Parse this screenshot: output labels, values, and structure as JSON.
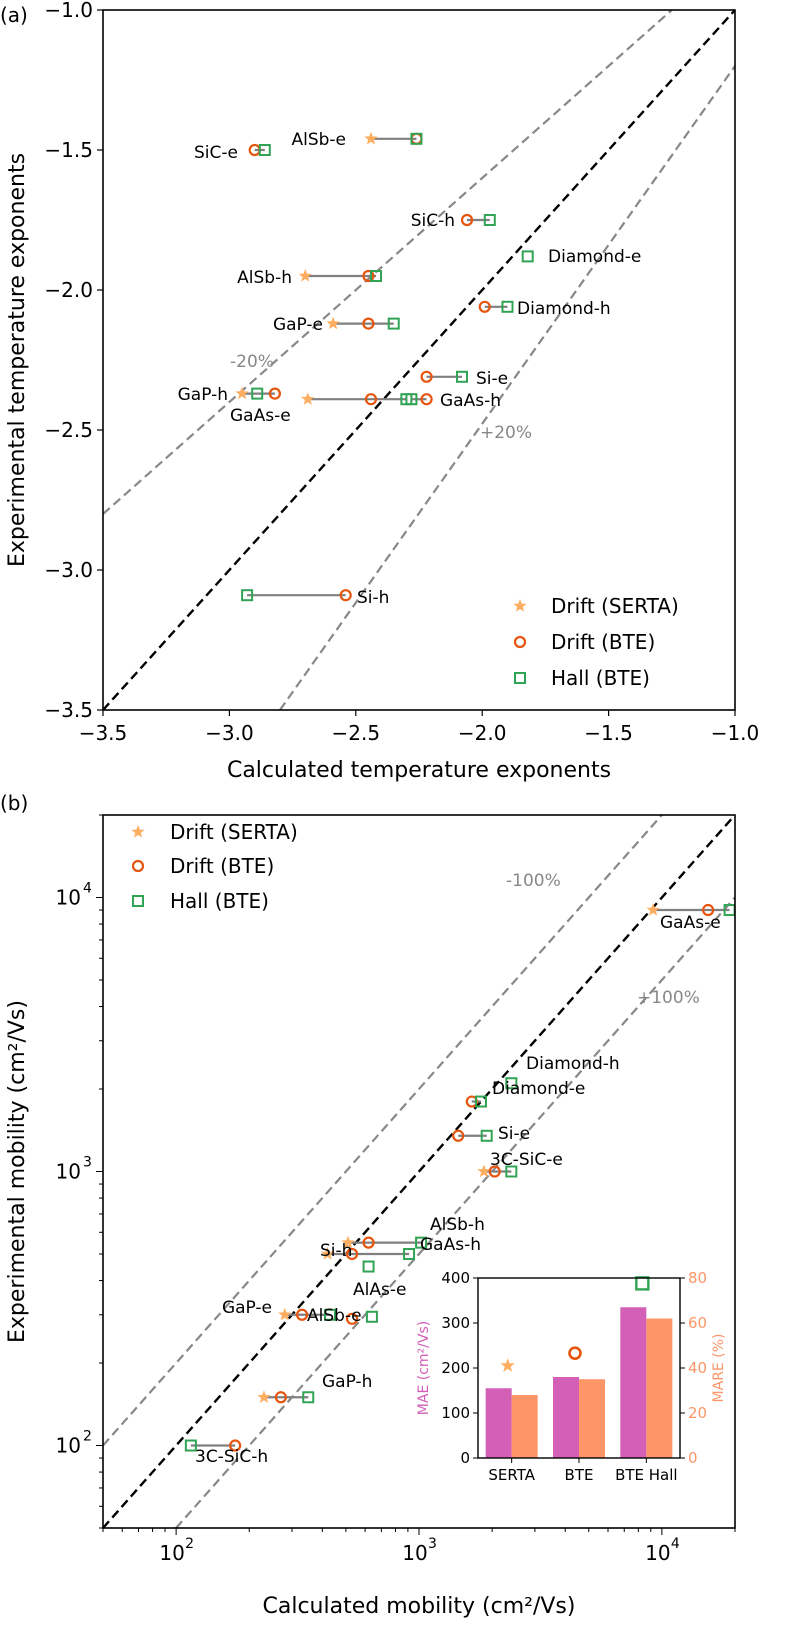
{
  "chart_data": [
    {
      "panel_label": "(a)",
      "type": "scatter",
      "xlabel": "Calculated temperature exponents",
      "ylabel": "Experimental  temperature exponents",
      "xlim": [
        -3.5,
        -1.0
      ],
      "ylim": [
        -3.5,
        -1.0
      ],
      "xticks": [
        "−3.5",
        "−3.0",
        "−2.5",
        "−2.0",
        "−1.5",
        "−1.0"
      ],
      "yticks": [
        "−3.5",
        "−3.0",
        "−2.5",
        "−2.0",
        "−1.5",
        "−1.0"
      ],
      "reference_lines": [
        "-20%",
        "+20%"
      ],
      "legend": {
        "position": "lower right",
        "entries": [
          "Drift (SERTA)",
          "Drift (BTE)",
          "Hall (BTE)"
        ]
      },
      "series_colors": {
        "drift_serta": "#fdae61",
        "drift_bte": "#e6550d",
        "hall_bte": "#31a354"
      },
      "points": [
        {
          "label": "SiC-e",
          "y": -1.5,
          "drift_bte": -2.9,
          "hall_bte": -2.86
        },
        {
          "label": "AlSb-e",
          "y": -1.46,
          "drift_serta": -2.44,
          "drift_bte": -2.26,
          "hall_bte": -2.26
        },
        {
          "label": "SiC-h",
          "y": -1.75,
          "drift_bte": -2.06,
          "hall_bte": -1.97
        },
        {
          "label": "Diamond-e",
          "y": -1.88,
          "hall_bte": -1.82
        },
        {
          "label": "AlSb-h",
          "y": -1.95,
          "drift_serta": -2.7,
          "drift_bte": -2.45,
          "hall_bte": -2.42
        },
        {
          "label": "Diamond-h",
          "y": -2.06,
          "drift_bte": -1.99,
          "hall_bte": -1.9
        },
        {
          "label": "GaP-e",
          "y": -2.12,
          "drift_serta": -2.59,
          "drift_bte": -2.45,
          "hall_bte": -2.35
        },
        {
          "label": "Si-e",
          "y": -2.31,
          "drift_bte": -2.22,
          "hall_bte": -2.08
        },
        {
          "label": "GaP-h",
          "y": -2.37,
          "drift_serta": -2.95,
          "drift_bte": -2.82,
          "hall_bte": -2.89
        },
        {
          "label": "GaAs-e",
          "y": -2.39,
          "drift_serta": -2.69,
          "drift_bte": -2.44,
          "hall_bte": -2.3
        },
        {
          "label": "GaAs-h",
          "y": -2.39,
          "drift_bte": -2.22,
          "hall_bte": -2.28
        },
        {
          "label": "Si-h",
          "y": -3.09,
          "drift_bte": -2.54,
          "hall_bte": -2.93
        }
      ]
    },
    {
      "panel_label": "(b)",
      "type": "scatter",
      "xlabel": "Calculated mobility (cm²/Vs)",
      "ylabel": "Experimental mobility (cm²/Vs)",
      "xscale": "log",
      "yscale": "log",
      "xlim": [
        50,
        20000
      ],
      "ylim": [
        50,
        20000
      ],
      "xticks": [
        100,
        1000,
        10000
      ],
      "yticks": [
        100,
        1000,
        10000
      ],
      "reference_lines": [
        "-100%",
        "+100%"
      ],
      "legend": {
        "position": "upper left",
        "entries": [
          "Drift (SERTA)",
          "Drift (BTE)",
          "Hall (BTE)"
        ]
      },
      "points": [
        {
          "label": "GaAs-e",
          "y": 9000,
          "drift_serta": 9200,
          "drift_bte": 15500,
          "hall_bte": 19000
        },
        {
          "label": "Diamond-h",
          "y": 2100,
          "hall_bte": 2400
        },
        {
          "label": "Diamond-e",
          "y": 1800,
          "drift_bte": 1650,
          "hall_bte": 1800
        },
        {
          "label": "Si-e",
          "y": 1350,
          "drift_bte": 1450,
          "hall_bte": 1900
        },
        {
          "label": "3C-SiC-e",
          "y": 1000,
          "drift_serta": 1850,
          "drift_bte": 2050,
          "hall_bte": 2400
        },
        {
          "label": "AlSb-h",
          "y": 550,
          "drift_serta": 510,
          "drift_bte": 620,
          "hall_bte": 1020
        },
        {
          "label": "GaAs-h",
          "y": 500,
          "drift_serta": 420,
          "drift_bte": 530,
          "hall_bte": 910
        },
        {
          "label": "Si-h",
          "y": 450,
          "hall_bte": 620
        },
        {
          "label": "GaP-e",
          "y": 300,
          "drift_serta": 280,
          "drift_bte": 330,
          "hall_bte": 430
        },
        {
          "label": "AlAs-e",
          "y": 295,
          "hall_bte": 640
        },
        {
          "label": "AlSb-e",
          "y": 290,
          "drift_bte": 530
        },
        {
          "label": "GaP-h",
          "y": 150,
          "drift_serta": 230,
          "drift_bte": 270,
          "hall_bte": 350
        },
        {
          "label": "3C-SiC-h",
          "y": 100,
          "drift_bte": 175,
          "hall_bte": 115
        }
      ]
    },
    {
      "panel_label": "(b) inset",
      "type": "bar",
      "categories": [
        "SERTA",
        "BTE",
        "BTE Hall"
      ],
      "series": [
        {
          "name": "MAE (cm²/Vs)",
          "axis": "left",
          "values": [
            155,
            180,
            335
          ],
          "color": "#d35fb7"
        },
        {
          "name": "MARE (%)",
          "axis": "right",
          "values": [
            28,
            35,
            62
          ],
          "color": "#fc9668"
        }
      ],
      "markers": [
        {
          "category": "SERTA",
          "marker": "star",
          "value": 205
        },
        {
          "category": "BTE",
          "marker": "circle",
          "value": 233
        },
        {
          "category": "BTE Hall",
          "marker": "square",
          "value": 388
        }
      ],
      "ylabel_left": "MAE (cm²/Vs)",
      "ylabel_right": "MARE (%)",
      "ylim_left": [
        0,
        400
      ],
      "ylim_right": [
        0,
        80
      ],
      "yticks_left": [
        0,
        100,
        200,
        300,
        400
      ],
      "yticks_right": [
        0,
        20,
        40,
        60,
        80
      ]
    }
  ]
}
